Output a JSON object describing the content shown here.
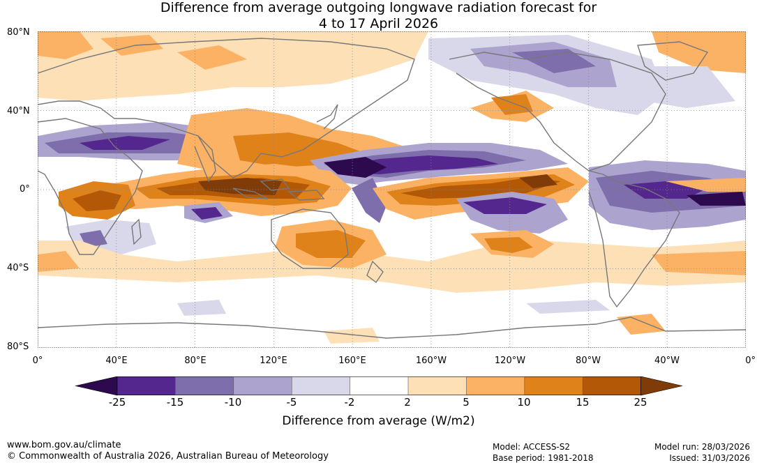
{
  "title": {
    "line1": "Difference from average outgoing longwave radiation forecast for",
    "line2": "4 to 17 April 2026"
  },
  "map": {
    "lat_labels": [
      "80°N",
      "40°N",
      "0°",
      "40°S",
      "80°S"
    ],
    "lon_labels": [
      "0°",
      "40°E",
      "80°E",
      "120°E",
      "160°E",
      "160°W",
      "120°W",
      "80°W",
      "40°W",
      "0°"
    ]
  },
  "legend": {
    "label": "Difference from average (W/m2)",
    "ticks": [
      "-25",
      "-15",
      "-10",
      "-5",
      "-2",
      "2",
      "5",
      "10",
      "15",
      "25"
    ],
    "colors": [
      "#2d0a4e",
      "#54278f",
      "#7e6fac",
      "#aca4cf",
      "#d9d7ea",
      "#ffffff",
      "#fde0b6",
      "#fbb264",
      "#e0821a",
      "#b35806",
      "#7f3b08"
    ]
  },
  "footer": {
    "website": "www.bom.gov.au/climate",
    "copyright": "© Commonwealth of Australia 2026, Australian Bureau of Meteorology",
    "model": "Model: ACCESS-S2",
    "base_period": "Base period: 1981-2018",
    "model_run": "Model run: 28/03/2026",
    "issued": "Issued: 31/03/2026"
  }
}
